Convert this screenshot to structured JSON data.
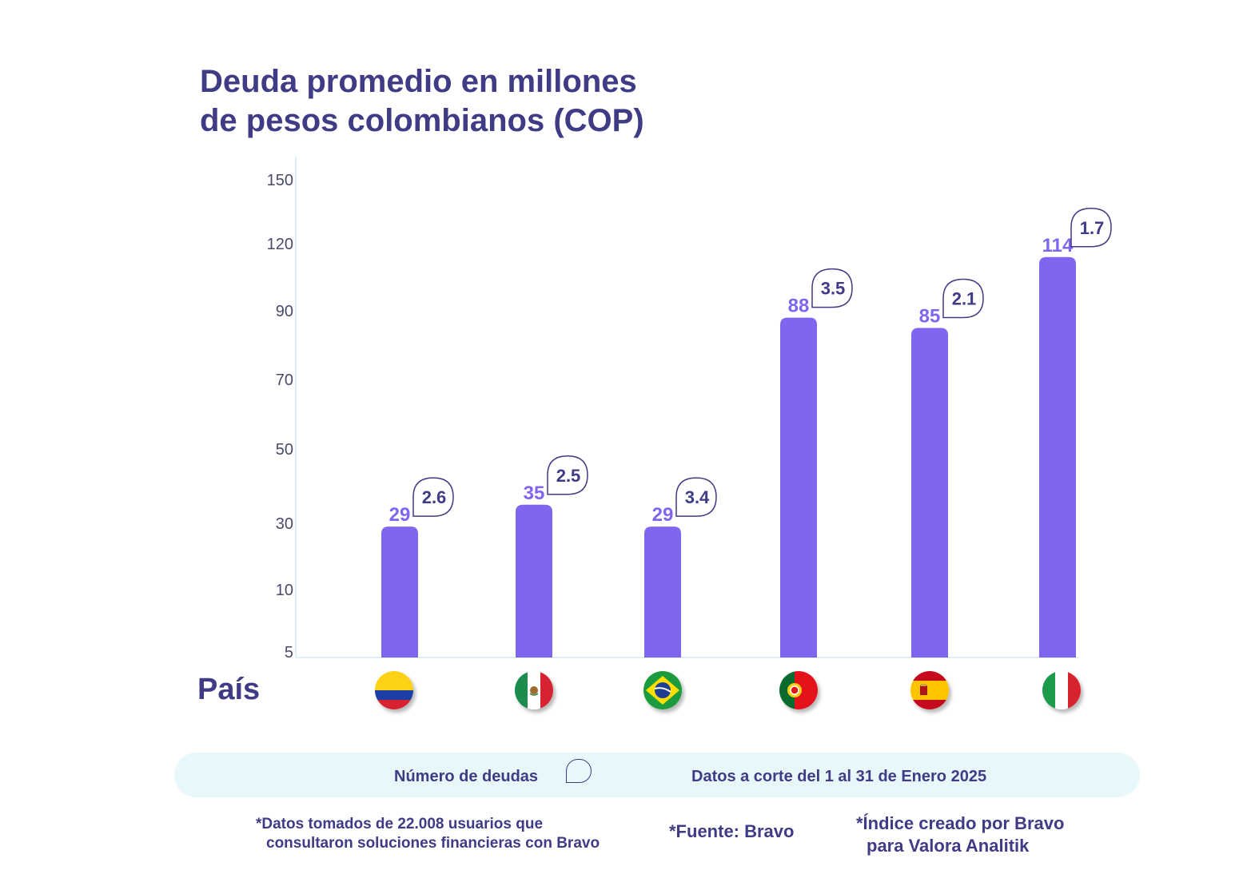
{
  "title_lines": [
    "Deuda promedio en millones",
    "de pesos colombianos (COP)"
  ],
  "chart_data": {
    "type": "bar",
    "title": "Deuda promedio en millones de pesos colombianos (COP)",
    "xlabel": "País",
    "ylabel": "",
    "yticks": [
      5,
      10,
      30,
      50,
      70,
      90,
      120,
      150
    ],
    "categories": [
      "Colombia",
      "México",
      "Brasil",
      "Portugal",
      "España",
      "Italia"
    ],
    "series": [
      {
        "name": "",
        "values": [
          29,
          35,
          29,
          88,
          85,
          114
        ]
      },
      {
        "name": "Número de deudas",
        "values": [
          2.6,
          2.5,
          3.4,
          3.5,
          2.1,
          1.7
        ]
      }
    ],
    "bar_color": "#8065ee",
    "legend": "bottom",
    "grid": false
  },
  "flags": [
    "colombia-flag-icon",
    "mexico-flag-icon",
    "brazil-flag-icon",
    "portugal-flag-icon",
    "spain-flag-icon",
    "italy-flag-icon"
  ],
  "axis_label": "País",
  "legend_label": "Número de deudas",
  "date_note": "Datos a corte del 1 al 31 de Enero 2025",
  "notes": {
    "users_line1": "*Datos tomados de 22.008 usuarios que",
    "users_line2": "consultaron soluciones financieras con Bravo",
    "source": "*Fuente: Bravo",
    "index_line1": "*Índice creado por Bravo",
    "index_line2": "para Valora Analitik"
  },
  "colors": {
    "accent": "#8065ee",
    "text": "#3f3b85",
    "band": "#e8f8fa"
  }
}
